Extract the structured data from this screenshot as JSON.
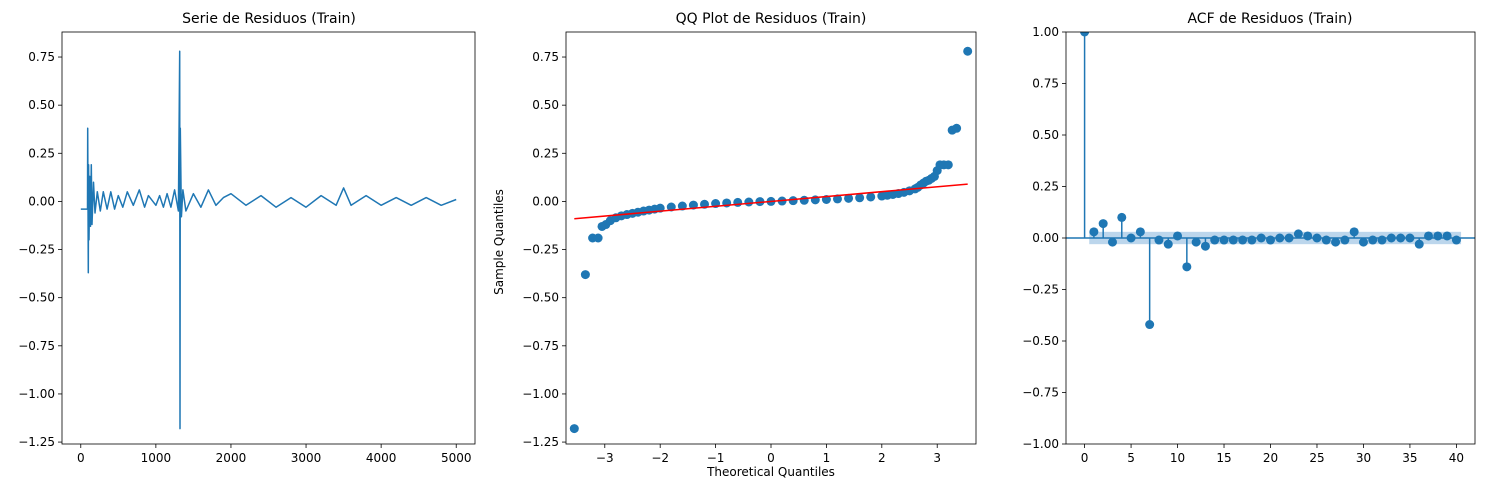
{
  "figure": {
    "background": "#ffffff"
  },
  "chart_data": [
    {
      "type": "line",
      "title": "Serie de Residuos (Train)",
      "xlabel": "",
      "ylabel": "",
      "xlim": [
        -250,
        5250
      ],
      "ylim": [
        -1.26,
        0.88
      ],
      "xticks": [
        0,
        1000,
        2000,
        3000,
        4000,
        5000
      ],
      "xtick_labels": [
        "0",
        "1000",
        "2000",
        "3000",
        "4000",
        "5000"
      ],
      "yticks": [
        -1.25,
        -1.0,
        -0.75,
        -0.5,
        -0.25,
        0.0,
        0.25,
        0.5,
        0.75
      ],
      "ytick_labels": [
        "−1.25",
        "−1.00",
        "−0.75",
        "−0.50",
        "−0.25",
        "0.00",
        "0.25",
        "0.50",
        "0.75"
      ],
      "grid": false,
      "color": "#1f77b4",
      "series": [
        {
          "x": [
            0,
            90,
            92,
            100,
            104,
            110,
            120,
            130,
            140,
            150,
            170,
            190,
            220,
            260,
            300,
            350,
            400,
            450,
            500,
            560,
            620,
            700,
            780,
            850,
            900,
            1000,
            1050,
            1100,
            1150,
            1200,
            1250,
            1300,
            1318,
            1322,
            1326,
            1340,
            1360,
            1400,
            1500,
            1600,
            1700,
            1800,
            1900,
            2000,
            2200,
            2400,
            2600,
            2800,
            3000,
            3200,
            3400,
            3500,
            3600,
            3800,
            4000,
            4200,
            4400,
            4600,
            4800,
            5000
          ],
          "y": [
            -0.04,
            -0.04,
            0.38,
            -0.37,
            0.19,
            -0.2,
            0.13,
            -0.13,
            0.19,
            -0.12,
            0.1,
            -0.06,
            0.05,
            -0.05,
            0.05,
            -0.04,
            0.05,
            -0.04,
            0.03,
            -0.03,
            0.05,
            -0.02,
            0.06,
            -0.03,
            0.03,
            -0.02,
            0.03,
            -0.03,
            0.04,
            -0.03,
            0.06,
            -0.05,
            0.78,
            -1.18,
            0.38,
            -0.08,
            0.06,
            -0.05,
            0.04,
            -0.03,
            0.06,
            -0.02,
            0.02,
            0.04,
            -0.02,
            0.03,
            -0.03,
            0.02,
            -0.03,
            0.03,
            -0.02,
            0.07,
            -0.02,
            0.03,
            -0.02,
            0.02,
            -0.02,
            0.02,
            -0.02,
            0.01
          ]
        }
      ]
    },
    {
      "type": "scatter",
      "title": "QQ Plot de Residuos (Train)",
      "xlabel": "Theoretical Quantiles",
      "ylabel": "Sample Quantiles",
      "xlim": [
        -3.7,
        3.7
      ],
      "ylim": [
        -1.26,
        0.88
      ],
      "xticks": [
        -3,
        -2,
        -1,
        0,
        1,
        2,
        3
      ],
      "xtick_labels": [
        "−3",
        "−2",
        "−1",
        "0",
        "1",
        "2",
        "3"
      ],
      "yticks": [
        -1.25,
        -1.0,
        -0.75,
        -0.5,
        -0.25,
        0.0,
        0.25,
        0.5,
        0.75
      ],
      "ytick_labels": [
        "−1.25",
        "−1.00",
        "−0.75",
        "−0.50",
        "−0.25",
        "0.00",
        "0.25",
        "0.50",
        "0.75"
      ],
      "grid": false,
      "marker_color": "#1f77b4",
      "line_color": "#ff0000",
      "points": {
        "x": [
          -3.55,
          -3.35,
          -3.22,
          -3.12,
          -3.05,
          -2.98,
          -2.9,
          -2.8,
          -2.7,
          -2.6,
          -2.5,
          -2.4,
          -2.3,
          -2.2,
          -2.1,
          -2.0,
          -1.8,
          -1.6,
          -1.4,
          -1.2,
          -1.0,
          -0.8,
          -0.6,
          -0.4,
          -0.2,
          0.0,
          0.2,
          0.4,
          0.6,
          0.8,
          1.0,
          1.2,
          1.4,
          1.6,
          1.8,
          2.0,
          2.1,
          2.2,
          2.3,
          2.4,
          2.5,
          2.6,
          2.65,
          2.7,
          2.75,
          2.8,
          2.85,
          2.9,
          2.95,
          3.0,
          3.05,
          3.12,
          3.2,
          3.27,
          3.35,
          3.55
        ],
        "y": [
          -1.18,
          -0.38,
          -0.19,
          -0.19,
          -0.13,
          -0.12,
          -0.1,
          -0.085,
          -0.075,
          -0.068,
          -0.062,
          -0.056,
          -0.05,
          -0.045,
          -0.04,
          -0.035,
          -0.029,
          -0.024,
          -0.019,
          -0.015,
          -0.011,
          -0.008,
          -0.005,
          -0.003,
          -0.001,
          0.0,
          0.002,
          0.004,
          0.006,
          0.008,
          0.01,
          0.013,
          0.016,
          0.019,
          0.023,
          0.028,
          0.032,
          0.036,
          0.041,
          0.047,
          0.055,
          0.065,
          0.073,
          0.085,
          0.095,
          0.105,
          0.11,
          0.12,
          0.13,
          0.16,
          0.19,
          0.19,
          0.19,
          0.37,
          0.38,
          0.78
        ]
      },
      "reference_line": {
        "x": [
          -3.55,
          3.55
        ],
        "y": [
          -0.09,
          0.09
        ]
      }
    },
    {
      "type": "stem",
      "title": "ACF de Residuos (Train)",
      "xlabel": "",
      "ylabel": "",
      "xlim": [
        -2,
        42
      ],
      "ylim": [
        -1.0,
        1.0
      ],
      "xticks": [
        0,
        5,
        10,
        15,
        20,
        25,
        30,
        35,
        40
      ],
      "xtick_labels": [
        "0",
        "5",
        "10",
        "15",
        "20",
        "25",
        "30",
        "35",
        "40"
      ],
      "yticks": [
        -1.0,
        -0.75,
        -0.5,
        -0.25,
        0.0,
        0.25,
        0.5,
        0.75,
        1.0
      ],
      "ytick_labels": [
        "−1.00",
        "−0.75",
        "−0.50",
        "−0.25",
        "0.00",
        "0.25",
        "0.50",
        "0.75",
        "1.00"
      ],
      "grid": false,
      "color": "#1f77b4",
      "confidence_band": 0.03,
      "confidence_color": "#a6c8e5",
      "lags": [
        0,
        1,
        2,
        3,
        4,
        5,
        6,
        7,
        8,
        9,
        10,
        11,
        12,
        13,
        14,
        15,
        16,
        17,
        18,
        19,
        20,
        21,
        22,
        23,
        24,
        25,
        26,
        27,
        28,
        29,
        30,
        31,
        32,
        33,
        34,
        35,
        36,
        37,
        38,
        39,
        40
      ],
      "values": [
        1.0,
        0.03,
        0.07,
        -0.02,
        0.1,
        0.0,
        0.03,
        -0.42,
        -0.01,
        -0.03,
        0.01,
        -0.14,
        -0.02,
        -0.04,
        -0.01,
        -0.01,
        -0.01,
        -0.01,
        -0.01,
        0.0,
        -0.01,
        0.0,
        0.0,
        0.02,
        0.01,
        0.0,
        -0.01,
        -0.02,
        -0.01,
        0.03,
        -0.02,
        -0.01,
        -0.01,
        0.0,
        0.0,
        0.0,
        -0.03,
        0.01,
        0.01,
        0.01,
        -0.01
      ]
    }
  ]
}
